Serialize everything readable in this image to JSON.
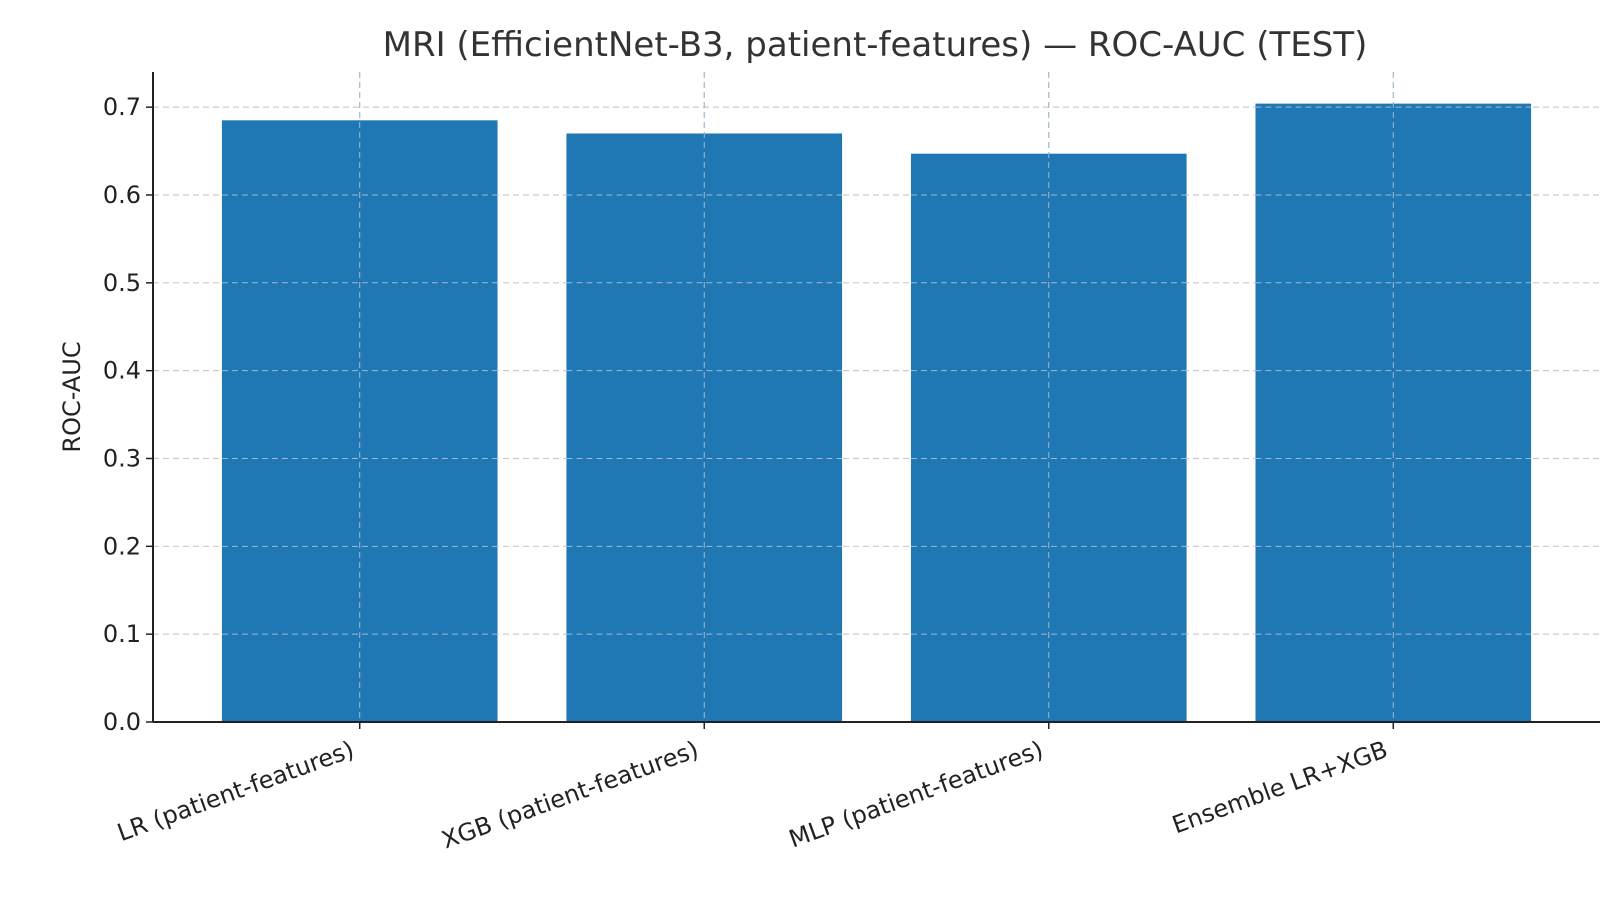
{
  "chart_data": {
    "type": "bar",
    "title": "MRI (EfficientNet-B3, patient-features) — ROC-AUC (TEST)",
    "xlabel": "",
    "ylabel": "ROC-AUC",
    "categories": [
      "LR (patient-features)",
      "XGB (patient-features)",
      "MLP (patient-features)",
      "Ensemble LR+XGB"
    ],
    "values": [
      0.685,
      0.67,
      0.647,
      0.704
    ],
    "ylim": [
      0,
      0.74
    ],
    "yticks": [
      0.0,
      0.1,
      0.2,
      0.3,
      0.4,
      0.5,
      0.6,
      0.7
    ],
    "ytick_labels": [
      "0.0",
      "0.1",
      "0.2",
      "0.3",
      "0.4",
      "0.5",
      "0.6",
      "0.7"
    ],
    "grid": true,
    "bar_color": "#1f77b4"
  }
}
